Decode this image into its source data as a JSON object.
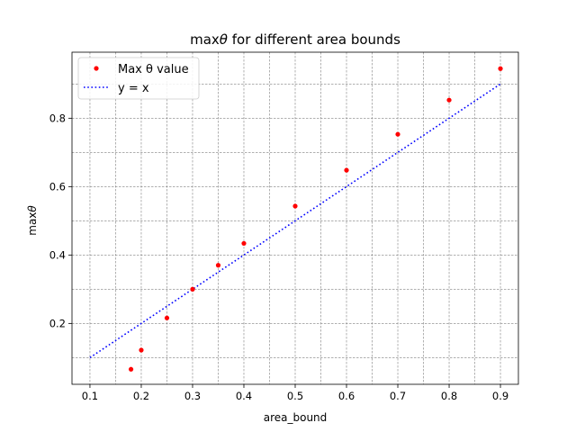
{
  "chart_data": {
    "type": "scatter",
    "title_prefix": "max",
    "title_symbol": "θ",
    "title_suffix": " for different area bounds",
    "xlabel": "area_bound",
    "ylabel_prefix": "max",
    "ylabel_symbol": "θ",
    "xlim": [
      0.065,
      0.935
    ],
    "ylim": [
      0.022,
      0.993
    ],
    "xticks": [
      0.1,
      0.2,
      0.3,
      0.4,
      0.5,
      0.6,
      0.7,
      0.8,
      0.9
    ],
    "yticks": [
      0.2,
      0.4,
      0.6,
      0.8
    ],
    "grid": true,
    "legend_position": "top-left",
    "series": [
      {
        "name": "Max θ value",
        "type": "scatter",
        "color": "#ff0000",
        "x": [
          0.18,
          0.2,
          0.25,
          0.3,
          0.35,
          0.4,
          0.5,
          0.6,
          0.7,
          0.8,
          0.9
        ],
        "y": [
          0.066,
          0.122,
          0.216,
          0.3,
          0.37,
          0.434,
          0.543,
          0.648,
          0.753,
          0.853,
          0.945
        ]
      },
      {
        "name": "y = x",
        "type": "line",
        "style": "dotted",
        "color": "#0000ff",
        "x": [
          0.1,
          0.9
        ],
        "y": [
          0.1,
          0.9
        ]
      }
    ]
  }
}
